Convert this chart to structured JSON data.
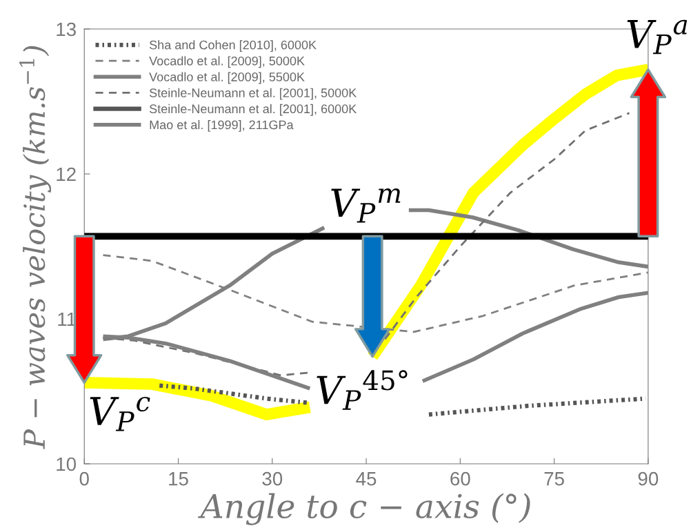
{
  "chart_data": {
    "type": "line",
    "xlabel": "Angle to c − axis (°)",
    "ylabel": "P − waves velocity (km.s$^{−1}$)",
    "xlim": [
      0,
      90
    ],
    "xticks": [
      0,
      15,
      30,
      45,
      60,
      75,
      90
    ],
    "ylim": [
      10,
      13
    ],
    "yticks": [
      10,
      11,
      12,
      13
    ],
    "grid": false,
    "legend": "top left",
    "series": [
      {
        "name": "Sha and Cohen [2010], 6000K",
        "color": "#555555",
        "line_style": "dotted",
        "x": [
          12,
          17.4,
          29.1,
          36,
          45,
          55,
          70.9,
          89.6
        ],
        "values": [
          10.54,
          10.52,
          10.45,
          10.42,
          null,
          10.34,
          10.4,
          10.45
        ]
      },
      {
        "name": "Vocadlo et al. [2009], 5000K",
        "color": "#808080",
        "line_style": "dashed",
        "x": [
          3,
          10.8,
          23.2,
          36.4,
          52.6,
          63.6,
          78.2,
          90
        ],
        "values": [
          11.44,
          11.4,
          11.2,
          10.98,
          10.91,
          11.02,
          11.23,
          11.32
        ]
      },
      {
        "name": "Vocadlo et al. [2009], 5500K",
        "color": "#808080",
        "line_style": "solid",
        "x": [
          3,
          7,
          13,
          23.2,
          30,
          38.3,
          45,
          51.8,
          55,
          62,
          69.4,
          78,
          85.3,
          90
        ],
        "values": [
          10.86,
          10.88,
          10.97,
          11.23,
          11.45,
          11.63,
          null,
          11.75,
          11.75,
          11.7,
          11.61,
          11.48,
          11.39,
          11.36
        ]
      },
      {
        "name": "Steinle-Neumann et al. [2001], 5000K",
        "color": "#707070",
        "line_style": "dashed",
        "x": [
          3,
          8,
          18,
          31.4,
          36,
          40,
          48,
          53,
          60,
          68,
          75,
          80,
          87
        ],
        "values": [
          10.87,
          10.85,
          10.76,
          10.61,
          10.63,
          null,
          10.86,
          11.15,
          11.5,
          11.87,
          12.1,
          12.3,
          12.42
        ]
      },
      {
        "name": "Steinle-Neumann et al. [2001], 6000K",
        "color": "#555555",
        "line_style": "solid"
      },
      {
        "name": "Mao et al. [1999], 211GPa",
        "color": "#808080",
        "line_style": "solid",
        "x": [
          3,
          7.1,
          13,
          23.2,
          36,
          45,
          54,
          62.1,
          70,
          79.3,
          85.3,
          90
        ],
        "values": [
          10.88,
          10.87,
          10.83,
          10.71,
          10.52,
          null,
          10.57,
          10.72,
          10.9,
          11.07,
          11.15,
          11.18
        ]
      },
      {
        "color": "#ffff00",
        "line_style": "solid",
        "x": [
          0,
          10.8,
          20.3,
          29.1,
          36,
          41,
          46,
          53.7,
          62.1,
          70,
          75,
          80,
          85,
          90
        ],
        "values": [
          10.56,
          10.55,
          10.47,
          10.34,
          10.39,
          null,
          10.74,
          11.23,
          11.87,
          12.2,
          12.38,
          12.55,
          12.68,
          12.72
        ]
      }
    ],
    "ref_lines": [
      {
        "axis": "y",
        "value": 11.57,
        "color": "#000000",
        "line_style": "solid"
      }
    ],
    "annotations": [
      {
        "text": "V$_{P}$$^{c}$",
        "x": 0,
        "y": 10.56
      },
      {
        "text": "V$_{P}$$^{m}$",
        "x": 45,
        "y": 11.57
      },
      {
        "text": "V$_{P}$$^{45°}$",
        "x": 46,
        "y": 10.74
      },
      {
        "text": "V$_{P}$$^{a}$",
        "x": 90,
        "y": 12.72
      }
    ]
  }
}
